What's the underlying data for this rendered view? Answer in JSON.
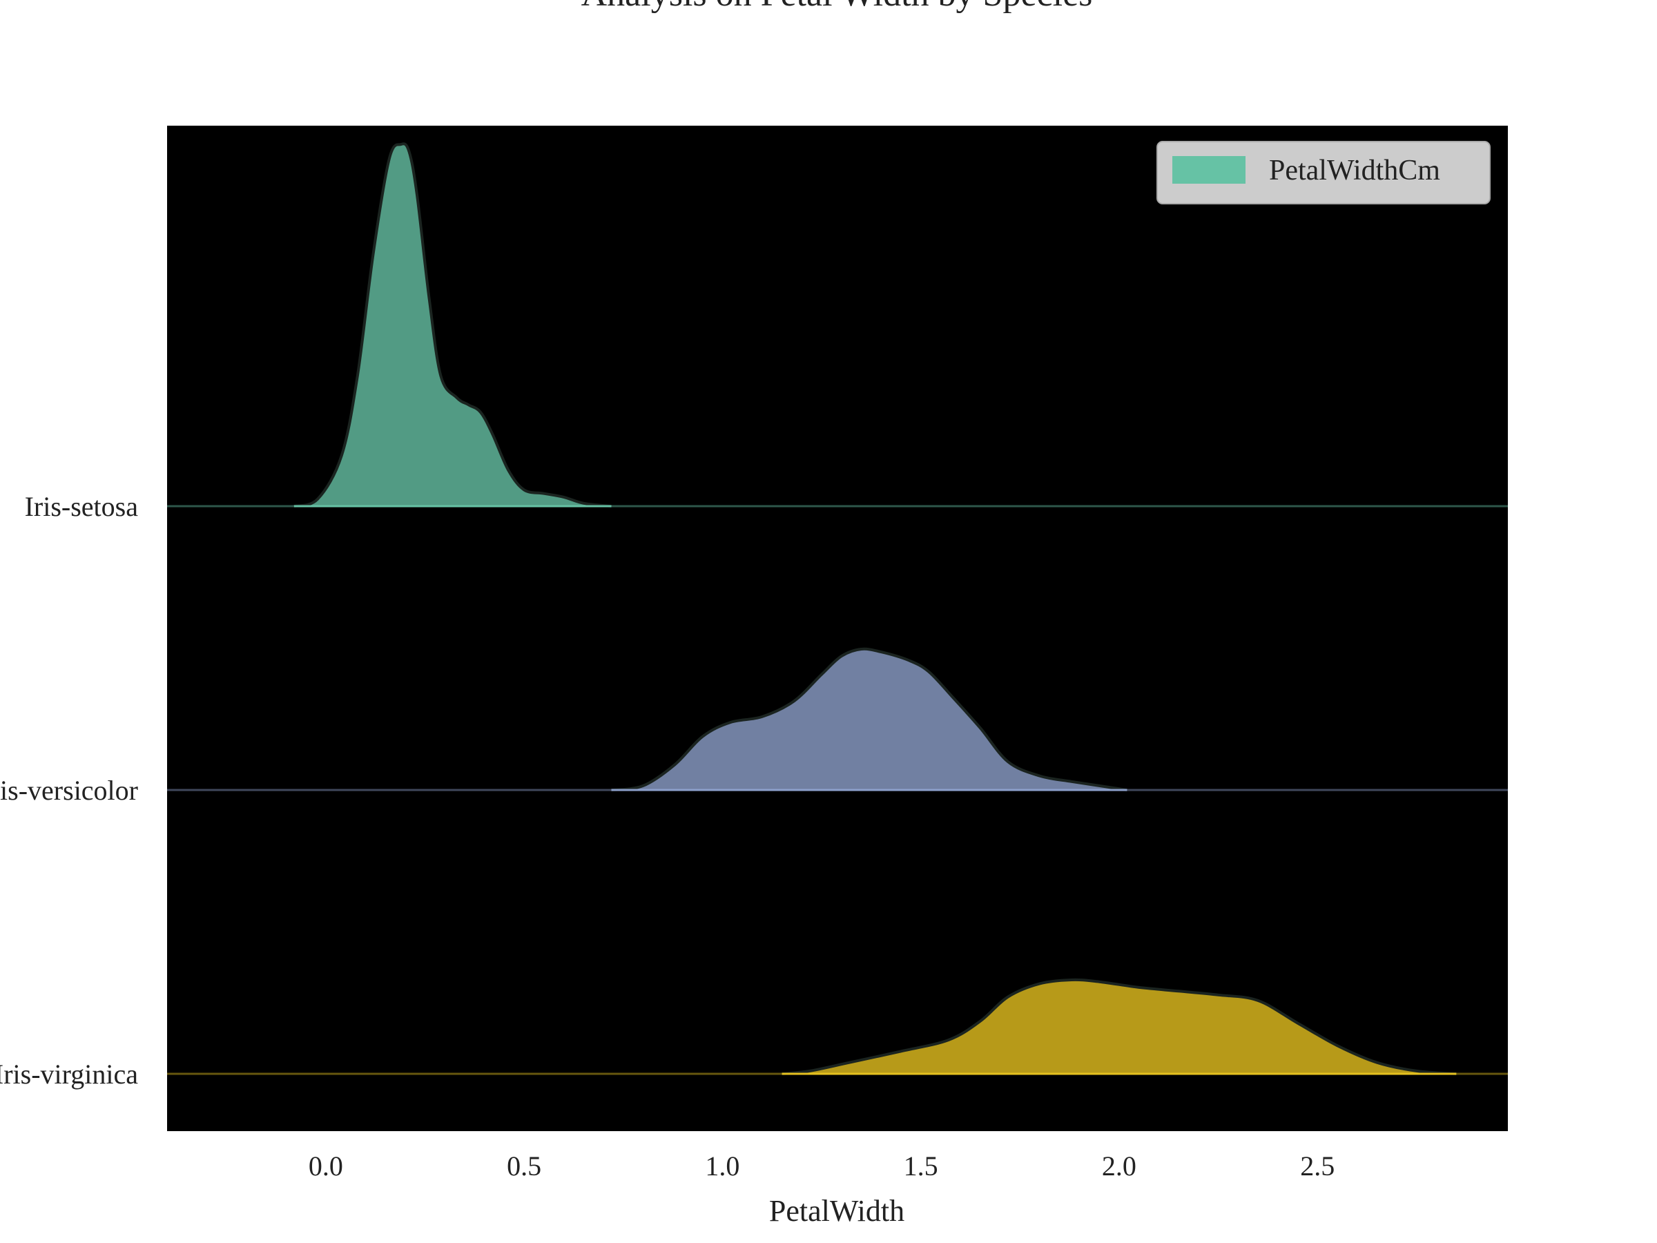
{
  "chart_data": {
    "type": "area",
    "title": "Analysis on Petal Width by Species",
    "xlabel": "PetalWidth",
    "ylabel": "",
    "xlim": [
      -0.4,
      2.98
    ],
    "x_ticks": [
      "0.0",
      "0.5",
      "1.0",
      "1.5",
      "2.0",
      "2.5"
    ],
    "x_tick_values": [
      0.0,
      0.5,
      1.0,
      1.5,
      2.0,
      2.5
    ],
    "categories": [
      "Iris-setosa",
      "Iris-versicolor",
      "Iris-virginica"
    ],
    "legend": {
      "label": "PetalWidthCm",
      "placement": "top-right"
    },
    "grid": false,
    "background": "#000000",
    "series": [
      {
        "name": "Iris-setosa",
        "color": "#66c2a5",
        "x": [
          -0.08,
          -0.02,
          0.04,
          0.08,
          0.12,
          0.16,
          0.19,
          0.21,
          0.23,
          0.26,
          0.29,
          0.33,
          0.36,
          0.39,
          0.42,
          0.46,
          0.5,
          0.55,
          0.6,
          0.65,
          0.72
        ],
        "density": [
          0.0,
          0.02,
          0.14,
          0.36,
          0.7,
          0.96,
          1.0,
          0.98,
          0.86,
          0.58,
          0.36,
          0.3,
          0.28,
          0.26,
          0.2,
          0.1,
          0.045,
          0.035,
          0.025,
          0.008,
          0.0
        ]
      },
      {
        "name": "Iris-versicolor",
        "color": "#8da0cb",
        "x": [
          0.72,
          0.8,
          0.88,
          0.95,
          1.02,
          1.1,
          1.18,
          1.25,
          1.3,
          1.35,
          1.4,
          1.47,
          1.52,
          1.58,
          1.65,
          1.72,
          1.8,
          1.88,
          1.95,
          2.02
        ],
        "density": [
          0.0,
          0.03,
          0.18,
          0.38,
          0.48,
          0.52,
          0.63,
          0.82,
          0.95,
          1.0,
          0.98,
          0.92,
          0.84,
          0.66,
          0.44,
          0.2,
          0.1,
          0.06,
          0.03,
          0.0
        ]
      },
      {
        "name": "Iris-virginica",
        "color": "#e5c11f",
        "x": [
          1.15,
          1.22,
          1.32,
          1.45,
          1.57,
          1.65,
          1.72,
          1.8,
          1.88,
          1.95,
          2.05,
          2.15,
          2.25,
          2.35,
          2.45,
          2.55,
          2.65,
          2.75,
          2.85
        ],
        "density": [
          0.0,
          0.03,
          0.12,
          0.24,
          0.36,
          0.56,
          0.82,
          0.96,
          1.0,
          0.98,
          0.92,
          0.88,
          0.84,
          0.78,
          0.54,
          0.3,
          0.12,
          0.03,
          0.0
        ]
      }
    ]
  }
}
